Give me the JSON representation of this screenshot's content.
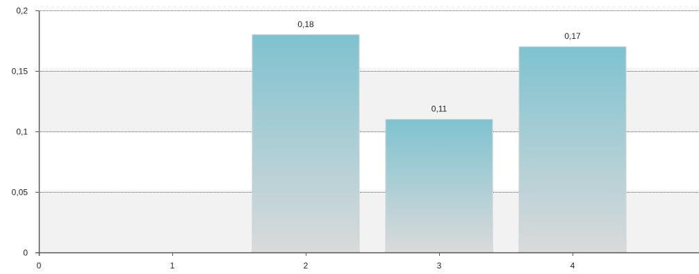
{
  "chart_data": {
    "type": "bar",
    "x_ticks": [
      "0",
      "1",
      "2",
      "3",
      "4"
    ],
    "bars": [
      {
        "x": 2,
        "value": 0.18,
        "label": "0,18"
      },
      {
        "x": 3,
        "value": 0.11,
        "label": "0,11"
      },
      {
        "x": 4,
        "value": 0.17,
        "label": "0,17"
      }
    ],
    "y_ticks": [
      {
        "value": 0,
        "label": "0"
      },
      {
        "value": 0.05,
        "label": "0,05"
      },
      {
        "value": 0.1,
        "label": "0,1"
      },
      {
        "value": 0.15,
        "label": "0,15"
      },
      {
        "value": 0.2,
        "label": "0,2"
      }
    ],
    "ylim": [
      0,
      0.2
    ],
    "grid": true,
    "band_fill": "#f2f2f2",
    "bar_top_color": "#7fc2d0",
    "bar_bottom_color": "#dadada",
    "bar_border_color": "#c8d5d9",
    "axis_color": "#555555",
    "grid_color": "#555555"
  }
}
